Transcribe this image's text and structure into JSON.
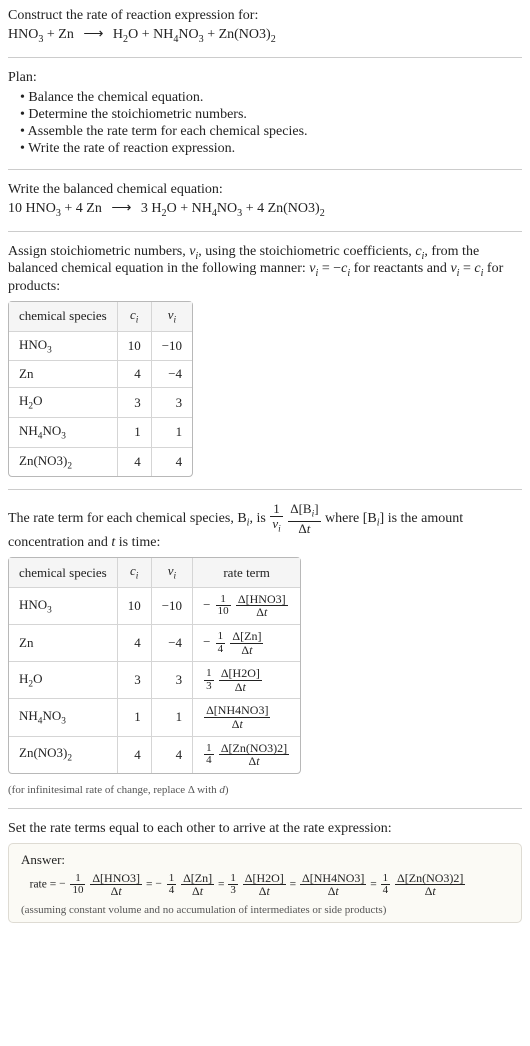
{
  "intro": {
    "title": "Construct the rate of reaction expression for:",
    "reaction": {
      "lhs": [
        {
          "coef": "",
          "f": "HNO",
          "sub": "3"
        },
        {
          "coef": "",
          "f": "Zn"
        }
      ],
      "rhs": [
        {
          "coef": "",
          "f": "H",
          "sub": "2",
          "tail": "O"
        },
        {
          "coef": "",
          "f": "NH",
          "sub": "4",
          "tail": "NO",
          "sub2": "3"
        },
        {
          "coef": "",
          "f": "Zn(NO3)",
          "sub": "2"
        }
      ]
    }
  },
  "plan": {
    "title": "Plan:",
    "items": [
      "Balance the chemical equation.",
      "Determine the stoichiometric numbers.",
      "Assemble the rate term for each chemical species.",
      "Write the rate of reaction expression."
    ]
  },
  "balance": {
    "title": "Write the balanced chemical equation:",
    "reaction": {
      "lhs": [
        {
          "coef": "10",
          "f": "HNO",
          "sub": "3"
        },
        {
          "coef": "4",
          "f": "Zn"
        }
      ],
      "rhs": [
        {
          "coef": "3",
          "f": "H",
          "sub": "2",
          "tail": "O"
        },
        {
          "coef": "",
          "f": "NH",
          "sub": "4",
          "tail": "NO",
          "sub2": "3"
        },
        {
          "coef": "4",
          "f": "Zn(NO3)",
          "sub": "2"
        }
      ]
    }
  },
  "assign": {
    "text_a": "Assign stoichiometric numbers, ",
    "nu": "ν",
    "text_b": ", using the stoichiometric coefficients, ",
    "c": "c",
    "text_c": ", from the balanced chemical equation in the following manner: ",
    "eq1_l": "ν",
    "eq1_r": " = −c",
    "eq1_t": " for reactants and ",
    "eq2_l": "ν",
    "eq2_r": " = c",
    "eq2_t": " for products:"
  },
  "table1": {
    "head": [
      "chemical species",
      "cᵢ",
      "νᵢ"
    ],
    "rows": [
      {
        "sp_a": "HNO",
        "sp_sub": "3",
        "c": "10",
        "nu": "−10"
      },
      {
        "sp_a": "Zn",
        "c": "4",
        "nu": "−4"
      },
      {
        "sp_a": "H",
        "sp_sub": "2",
        "sp_b": "O",
        "c": "3",
        "nu": "3"
      },
      {
        "sp_a": "NH",
        "sp_sub": "4",
        "sp_b": "NO",
        "sp_sub2": "3",
        "c": "1",
        "nu": "1"
      },
      {
        "sp_a": "Zn(NO3)",
        "sp_sub": "2",
        "c": "4",
        "nu": "4"
      }
    ]
  },
  "rateterm": {
    "text_a": "The rate term for each chemical species, B",
    "text_b": ", is ",
    "formula_num": "1",
    "formula_den": "ν",
    "delta_num1": "Δ[B",
    "delta_num2": "]",
    "delta_den": "Δt",
    "text_c": " where [B",
    "text_d": "] is the amount concentration and ",
    "tvar": "t",
    "text_e": " is time:"
  },
  "table2": {
    "head": [
      "chemical species",
      "cᵢ",
      "νᵢ",
      "rate term"
    ],
    "rows": [
      {
        "sp_a": "HNO",
        "sp_sub": "3",
        "c": "10",
        "nu": "−10",
        "rt": {
          "sign": "−",
          "fnum": "1",
          "fden": "10",
          "dnum": "Δ[HNO3]",
          "dden": "Δt"
        }
      },
      {
        "sp_a": "Zn",
        "c": "4",
        "nu": "−4",
        "rt": {
          "sign": "−",
          "fnum": "1",
          "fden": "4",
          "dnum": "Δ[Zn]",
          "dden": "Δt"
        }
      },
      {
        "sp_a": "H",
        "sp_sub": "2",
        "sp_b": "O",
        "c": "3",
        "nu": "3",
        "rt": {
          "sign": "",
          "fnum": "1",
          "fden": "3",
          "dnum": "Δ[H2O]",
          "dden": "Δt"
        }
      },
      {
        "sp_a": "NH",
        "sp_sub": "4",
        "sp_b": "NO",
        "sp_sub2": "3",
        "c": "1",
        "nu": "1",
        "rt": {
          "sign": "",
          "fnum": "",
          "fden": "",
          "dnum": "Δ[NH4NO3]",
          "dden": "Δt"
        }
      },
      {
        "sp_a": "Zn(NO3)",
        "sp_sub": "2",
        "c": "4",
        "nu": "4",
        "rt": {
          "sign": "",
          "fnum": "1",
          "fden": "4",
          "dnum": "Δ[Zn(NO3)2]",
          "dden": "Δt"
        }
      }
    ]
  },
  "infnote": "(for infinitesimal rate of change, replace Δ with d)",
  "seteq": "Set the rate terms equal to each other to arrive at the rate expression:",
  "answer": {
    "title": "Answer:",
    "lead": "rate = ",
    "terms": [
      {
        "sign": "−",
        "fnum": "1",
        "fden": "10",
        "dnum": "Δ[HNO3]",
        "dden": "Δt"
      },
      {
        "sign": "−",
        "fnum": "1",
        "fden": "4",
        "dnum": "Δ[Zn]",
        "dden": "Δt"
      },
      {
        "sign": "",
        "fnum": "1",
        "fden": "3",
        "dnum": "Δ[H2O]",
        "dden": "Δt"
      },
      {
        "sign": "",
        "fnum": "",
        "fden": "",
        "dnum": "Δ[NH4NO3]",
        "dden": "Δt"
      },
      {
        "sign": "",
        "fnum": "1",
        "fden": "4",
        "dnum": "Δ[Zn(NO3)2]",
        "dden": "Δt"
      }
    ],
    "note": "(assuming constant volume and no accumulation of intermediates or side products)"
  },
  "style": {
    "body_bg": "#ffffff",
    "text_color": "#222222",
    "hr_color": "#cccccc",
    "table_border": "#b8b8b8",
    "table_inner": "#d5d5d5",
    "table_head_bg": "#f5f5f5",
    "answer_bg": "#fbfaf5",
    "answer_border": "#dedbd3",
    "note_color": "#555555",
    "font_body": 14,
    "font_table": 13,
    "font_note": 11
  }
}
